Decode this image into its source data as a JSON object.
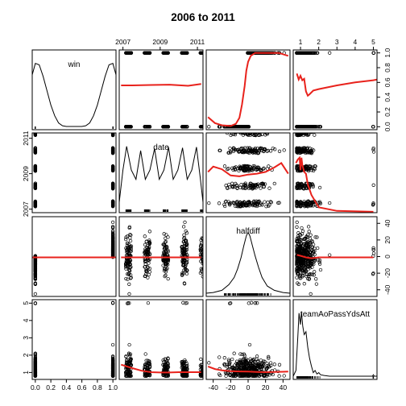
{
  "chart_data": {
    "type": "scatter-matrix",
    "title": "2006 to 2011",
    "variables": [
      "win",
      "date",
      "halfdiff",
      "teamAoPassYdsAtt"
    ],
    "axes": {
      "win": {
        "range": [
          -0.04,
          1.04
        ],
        "ticks": [
          0.0,
          0.2,
          0.4,
          0.6,
          0.8,
          1.0
        ],
        "tick_labels": [
          "0.0",
          "0.2",
          "0.4",
          "0.6",
          "0.8",
          "1.0"
        ]
      },
      "date": {
        "range": [
          2006.8,
          2011.3
        ],
        "ticks": [
          2007,
          2009,
          2011
        ],
        "tick_labels": [
          "2007",
          "2009",
          "2011"
        ]
      },
      "halfdiff": {
        "range": [
          -48,
          48
        ],
        "ticks": [
          -40,
          -20,
          0,
          20,
          40
        ],
        "tick_labels": [
          "-40",
          "-20",
          "0",
          "20",
          "40"
        ]
      },
      "teamAoPassYdsAtt": {
        "range": [
          0.6,
          5.2
        ],
        "ticks": [
          1,
          2,
          3,
          4,
          5
        ],
        "tick_labels": [
          "1",
          "2",
          "3",
          "4",
          "5"
        ]
      }
    },
    "diagonal_density": {
      "win": [
        [
          -0.04,
          0.72
        ],
        [
          0.0,
          0.88
        ],
        [
          0.05,
          0.86
        ],
        [
          0.1,
          0.7
        ],
        [
          0.15,
          0.5
        ],
        [
          0.2,
          0.3
        ],
        [
          0.25,
          0.15
        ],
        [
          0.3,
          0.05
        ],
        [
          0.35,
          0.01
        ],
        [
          0.4,
          0.0
        ],
        [
          0.5,
          0.0
        ],
        [
          0.6,
          0.0
        ],
        [
          0.65,
          0.01
        ],
        [
          0.7,
          0.05
        ],
        [
          0.75,
          0.15
        ],
        [
          0.8,
          0.3
        ],
        [
          0.85,
          0.5
        ],
        [
          0.9,
          0.7
        ],
        [
          0.95,
          0.86
        ],
        [
          1.0,
          0.88
        ],
        [
          1.04,
          0.72
        ]
      ],
      "date": [
        [
          2006.8,
          0.1
        ],
        [
          2007.0,
          0.55
        ],
        [
          2007.2,
          0.88
        ],
        [
          2007.45,
          0.55
        ],
        [
          2007.7,
          0.42
        ],
        [
          2007.95,
          0.82
        ],
        [
          2008.2,
          0.42
        ],
        [
          2008.45,
          0.55
        ],
        [
          2008.7,
          0.85
        ],
        [
          2008.95,
          0.42
        ],
        [
          2009.2,
          0.55
        ],
        [
          2009.45,
          0.87
        ],
        [
          2009.7,
          0.42
        ],
        [
          2009.95,
          0.55
        ],
        [
          2010.2,
          0.86
        ],
        [
          2010.45,
          0.42
        ],
        [
          2010.7,
          0.55
        ],
        [
          2010.95,
          0.87
        ],
        [
          2011.15,
          0.45
        ],
        [
          2011.3,
          0.1
        ]
      ],
      "halfdiff": [
        [
          -48,
          0.0
        ],
        [
          -40,
          0.01
        ],
        [
          -30,
          0.04
        ],
        [
          -22,
          0.12
        ],
        [
          -16,
          0.22
        ],
        [
          -12,
          0.34
        ],
        [
          -8,
          0.5
        ],
        [
          -5,
          0.66
        ],
        [
          -2,
          0.8
        ],
        [
          0,
          0.85
        ],
        [
          2,
          0.8
        ],
        [
          5,
          0.66
        ],
        [
          8,
          0.52
        ],
        [
          12,
          0.36
        ],
        [
          16,
          0.22
        ],
        [
          22,
          0.1
        ],
        [
          30,
          0.04
        ],
        [
          40,
          0.01
        ],
        [
          48,
          0.0
        ]
      ],
      "teamAoPassYdsAtt": [
        [
          0.6,
          0.0
        ],
        [
          0.75,
          0.08
        ],
        [
          0.85,
          0.55
        ],
        [
          0.92,
          0.88
        ],
        [
          1.0,
          0.72
        ],
        [
          1.05,
          0.9
        ],
        [
          1.12,
          0.7
        ],
        [
          1.2,
          0.58
        ],
        [
          1.3,
          0.62
        ],
        [
          1.4,
          0.4
        ],
        [
          1.5,
          0.25
        ],
        [
          1.6,
          0.14
        ],
        [
          1.7,
          0.05
        ],
        [
          1.8,
          0.08
        ],
        [
          1.9,
          0.03
        ],
        [
          2.0,
          0.05
        ],
        [
          2.1,
          0.02
        ],
        [
          2.3,
          0.01
        ],
        [
          2.6,
          0.0
        ],
        [
          3.0,
          0.0
        ],
        [
          4.95,
          0.0
        ],
        [
          5.0,
          0.02
        ],
        [
          5.05,
          0.0
        ],
        [
          5.2,
          0.0
        ]
      ]
    },
    "smoothers": {
      "date|win": [
        [
          2006.9,
          0.56
        ],
        [
          2007.5,
          0.56
        ],
        [
          2008.5,
          0.565
        ],
        [
          2009.5,
          0.57
        ],
        [
          2010.5,
          0.555
        ],
        [
          2011.2,
          0.58
        ]
      ],
      "halfdiff|win": [
        [
          -46,
          0.13
        ],
        [
          -38,
          0.05
        ],
        [
          -30,
          0.02
        ],
        [
          -20,
          0.01
        ],
        [
          -14,
          0.04
        ],
        [
          -10,
          0.12
        ],
        [
          -7,
          0.3
        ],
        [
          -4,
          0.55
        ],
        [
          -2,
          0.76
        ],
        [
          0,
          0.88
        ],
        [
          3,
          0.96
        ],
        [
          8,
          1.0
        ],
        [
          20,
          1.0
        ],
        [
          35,
          1.0
        ],
        [
          46,
          0.96
        ]
      ],
      "teamAoPassYdsAtt|win": [
        [
          0.8,
          0.72
        ],
        [
          0.9,
          0.64
        ],
        [
          1.0,
          0.69
        ],
        [
          1.1,
          0.63
        ],
        [
          1.2,
          0.65
        ],
        [
          1.3,
          0.48
        ],
        [
          1.4,
          0.42
        ],
        [
          1.5,
          0.44
        ],
        [
          1.7,
          0.49
        ],
        [
          2.0,
          0.51
        ],
        [
          3.0,
          0.56
        ],
        [
          4.0,
          0.6
        ],
        [
          5.0,
          0.63
        ],
        [
          5.2,
          0.64
        ]
      ],
      "halfdiff|date": [
        [
          -46,
          2009.1
        ],
        [
          -40,
          2009.4
        ],
        [
          -30,
          2009.25
        ],
        [
          -20,
          2008.9
        ],
        [
          -10,
          2008.85
        ],
        [
          0,
          2008.95
        ],
        [
          10,
          2009.0
        ],
        [
          20,
          2009.1
        ],
        [
          30,
          2009.35
        ],
        [
          38,
          2009.6
        ],
        [
          46,
          2009.0
        ]
      ],
      "teamAoPassYdsAtt|date": [
        [
          0.75,
          2009.6
        ],
        [
          0.85,
          2009.8
        ],
        [
          0.95,
          2009.9
        ],
        [
          1.0,
          2009.2
        ],
        [
          1.05,
          2009.9
        ],
        [
          1.1,
          2009.5
        ],
        [
          1.2,
          2009.1
        ],
        [
          1.3,
          2009.0
        ],
        [
          1.4,
          2008.4
        ],
        [
          1.6,
          2007.8
        ],
        [
          2.0,
          2007.1
        ],
        [
          3.0,
          2006.9
        ],
        [
          5.0,
          2006.85
        ]
      ],
      "win|halfdiff": [
        [
          -0.04,
          -1
        ],
        [
          1.04,
          -1
        ]
      ],
      "date|halfdiff": [
        [
          2006.9,
          -1
        ],
        [
          2008,
          -1
        ],
        [
          2009,
          -1
        ],
        [
          2010,
          -1
        ],
        [
          2011.2,
          -1
        ]
      ],
      "teamAoPassYdsAtt|halfdiff": [
        [
          0.8,
          2
        ],
        [
          1.0,
          1
        ],
        [
          1.3,
          -1
        ],
        [
          1.6,
          -2
        ],
        [
          2.0,
          -1
        ],
        [
          3.0,
          -1
        ],
        [
          4.0,
          -1
        ],
        [
          5.0,
          -1
        ]
      ],
      "date|teamAoPassYdsAtt": [
        [
          2006.9,
          1.45
        ],
        [
          2007.5,
          1.25
        ],
        [
          2008.0,
          1.1
        ],
        [
          2008.5,
          1.02
        ],
        [
          2009.0,
          1.0
        ],
        [
          2009.5,
          1.0
        ],
        [
          2010.0,
          1.02
        ],
        [
          2010.5,
          1.02
        ],
        [
          2011.2,
          1.02
        ]
      ],
      "halfdiff|teamAoPassYdsAtt": [
        [
          -46,
          1.35
        ],
        [
          -38,
          1.2
        ],
        [
          -30,
          1.12
        ],
        [
          -20,
          1.08
        ],
        [
          -10,
          1.06
        ],
        [
          0,
          1.05
        ],
        [
          10,
          1.03
        ],
        [
          20,
          1.02
        ],
        [
          30,
          1.03
        ],
        [
          40,
          1.04
        ],
        [
          46,
          1.05
        ]
      ]
    }
  }
}
